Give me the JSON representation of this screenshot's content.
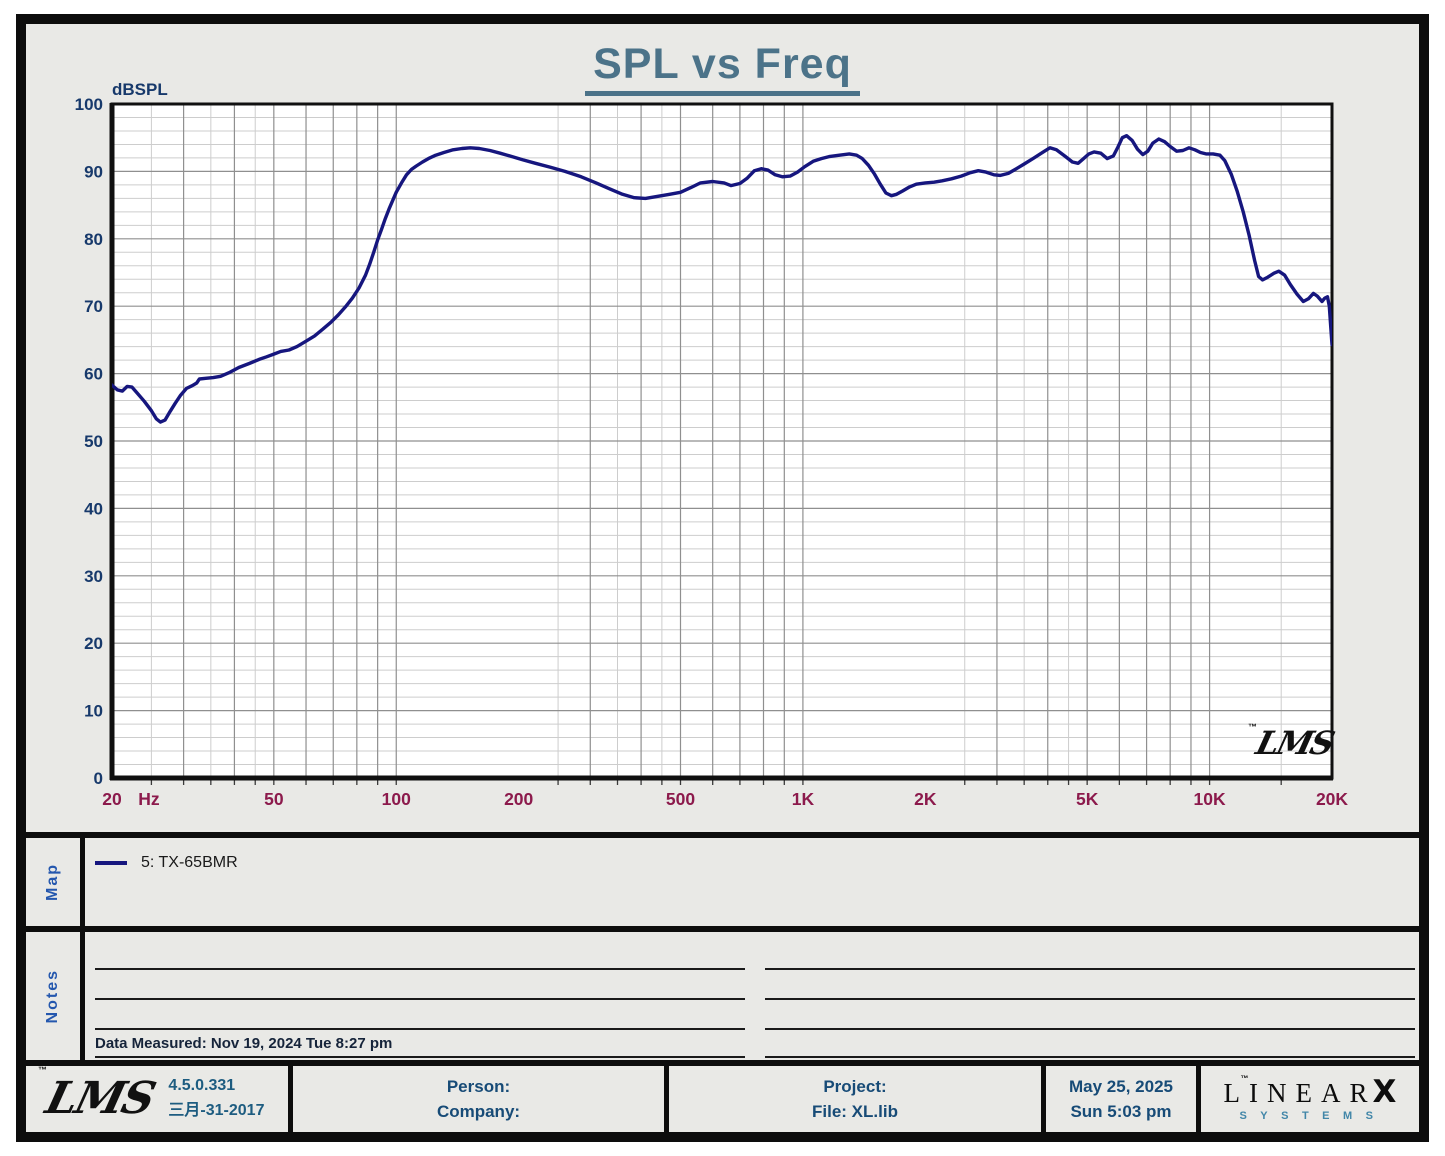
{
  "title": "SPL vs Freq",
  "chart_data": {
    "type": "line",
    "title": "SPL vs Freq",
    "x_axis": {
      "scale": "log",
      "min": 20,
      "max": 20000,
      "unit": "Hz",
      "ticks": [
        {
          "f": 20,
          "label": "20"
        },
        {
          "f": 50,
          "label": "50"
        },
        {
          "f": 100,
          "label": "100"
        },
        {
          "f": 200,
          "label": "200"
        },
        {
          "f": 500,
          "label": "500"
        },
        {
          "f": 1000,
          "label": "1K"
        },
        {
          "f": 2000,
          "label": "2K"
        },
        {
          "f": 5000,
          "label": "5K"
        },
        {
          "f": 10000,
          "label": "10K"
        },
        {
          "f": 20000,
          "label": "20K"
        }
      ]
    },
    "y_axis": {
      "label": "dBSPL",
      "min": 0,
      "max": 100,
      "tick_step": 10,
      "minor_step": 2
    },
    "grid": "on",
    "legend_position": "map-band-below",
    "watermark": "LMS",
    "series": [
      {
        "name": "5: TX-65BMR",
        "color": "#16167e",
        "points": [
          [
            20,
            58.3
          ],
          [
            20.6,
            57.6
          ],
          [
            21.2,
            57.4
          ],
          [
            21.8,
            58.1
          ],
          [
            22.4,
            58.0
          ],
          [
            23,
            57.2
          ],
          [
            24,
            55.9
          ],
          [
            25,
            54.5
          ],
          [
            25.7,
            53.3
          ],
          [
            26.3,
            52.8
          ],
          [
            27,
            53.1
          ],
          [
            27.8,
            54.4
          ],
          [
            28.6,
            55.6
          ],
          [
            29.5,
            56.8
          ],
          [
            30.5,
            57.8
          ],
          [
            31.5,
            58.2
          ],
          [
            32.3,
            58.6
          ],
          [
            32.8,
            59.2
          ],
          [
            34,
            59.3
          ],
          [
            35.5,
            59.4
          ],
          [
            37,
            59.6
          ],
          [
            39,
            60.2
          ],
          [
            41,
            60.9
          ],
          [
            43.5,
            61.5
          ],
          [
            46,
            62.1
          ],
          [
            48,
            62.5
          ],
          [
            50,
            62.9
          ],
          [
            52,
            63.3
          ],
          [
            54.5,
            63.5
          ],
          [
            57,
            64.0
          ],
          [
            60,
            64.8
          ],
          [
            63,
            65.6
          ],
          [
            66,
            66.6
          ],
          [
            69,
            67.6
          ],
          [
            72,
            68.7
          ],
          [
            75,
            69.9
          ],
          [
            78,
            71.2
          ],
          [
            81,
            72.7
          ],
          [
            84,
            74.6
          ],
          [
            86,
            76.2
          ],
          [
            88,
            78.0
          ],
          [
            90,
            79.8
          ],
          [
            92,
            81.4
          ],
          [
            94,
            83.0
          ],
          [
            96,
            84.4
          ],
          [
            98,
            85.7
          ],
          [
            100,
            86.9
          ],
          [
            103,
            88.3
          ],
          [
            106,
            89.5
          ],
          [
            109,
            90.3
          ],
          [
            112,
            90.8
          ],
          [
            116,
            91.4
          ],
          [
            120,
            91.9
          ],
          [
            125,
            92.4
          ],
          [
            131,
            92.8
          ],
          [
            138,
            93.2
          ],
          [
            145,
            93.4
          ],
          [
            152,
            93.5
          ],
          [
            160,
            93.4
          ],
          [
            170,
            93.1
          ],
          [
            180,
            92.7
          ],
          [
            190,
            92.3
          ],
          [
            205,
            91.7
          ],
          [
            220,
            91.2
          ],
          [
            240,
            90.6
          ],
          [
            260,
            90.0
          ],
          [
            285,
            89.2
          ],
          [
            310,
            88.3
          ],
          [
            335,
            87.4
          ],
          [
            360,
            86.6
          ],
          [
            385,
            86.1
          ],
          [
            410,
            86.0
          ],
          [
            440,
            86.3
          ],
          [
            470,
            86.6
          ],
          [
            500,
            86.9
          ],
          [
            530,
            87.6
          ],
          [
            560,
            88.3
          ],
          [
            600,
            88.5
          ],
          [
            640,
            88.3
          ],
          [
            665,
            87.9
          ],
          [
            700,
            88.2
          ],
          [
            730,
            89.0
          ],
          [
            760,
            90.1
          ],
          [
            790,
            90.4
          ],
          [
            820,
            90.2
          ],
          [
            855,
            89.5
          ],
          [
            890,
            89.2
          ],
          [
            930,
            89.3
          ],
          [
            970,
            89.9
          ],
          [
            1010,
            90.7
          ],
          [
            1060,
            91.5
          ],
          [
            1110,
            91.9
          ],
          [
            1160,
            92.2
          ],
          [
            1230,
            92.4
          ],
          [
            1300,
            92.6
          ],
          [
            1355,
            92.4
          ],
          [
            1400,
            91.9
          ],
          [
            1450,
            90.9
          ],
          [
            1500,
            89.6
          ],
          [
            1550,
            88.1
          ],
          [
            1600,
            86.8
          ],
          [
            1650,
            86.4
          ],
          [
            1700,
            86.6
          ],
          [
            1760,
            87.1
          ],
          [
            1830,
            87.7
          ],
          [
            1900,
            88.1
          ],
          [
            2000,
            88.3
          ],
          [
            2100,
            88.4
          ],
          [
            2200,
            88.6
          ],
          [
            2320,
            88.9
          ],
          [
            2450,
            89.3
          ],
          [
            2580,
            89.8
          ],
          [
            2700,
            90.1
          ],
          [
            2820,
            89.9
          ],
          [
            2950,
            89.5
          ],
          [
            3060,
            89.4
          ],
          [
            3200,
            89.7
          ],
          [
            3350,
            90.4
          ],
          [
            3500,
            91.1
          ],
          [
            3700,
            92.0
          ],
          [
            3900,
            92.9
          ],
          [
            4050,
            93.5
          ],
          [
            4200,
            93.2
          ],
          [
            4400,
            92.3
          ],
          [
            4600,
            91.4
          ],
          [
            4750,
            91.2
          ],
          [
            4900,
            91.9
          ],
          [
            5050,
            92.6
          ],
          [
            5200,
            92.9
          ],
          [
            5400,
            92.7
          ],
          [
            5600,
            91.9
          ],
          [
            5800,
            92.3
          ],
          [
            5950,
            93.6
          ],
          [
            6100,
            95.0
          ],
          [
            6250,
            95.3
          ],
          [
            6450,
            94.6
          ],
          [
            6650,
            93.3
          ],
          [
            6850,
            92.5
          ],
          [
            7050,
            93.0
          ],
          [
            7250,
            94.2
          ],
          [
            7500,
            94.8
          ],
          [
            7750,
            94.4
          ],
          [
            8000,
            93.7
          ],
          [
            8300,
            93.0
          ],
          [
            8600,
            93.1
          ],
          [
            8900,
            93.5
          ],
          [
            9200,
            93.2
          ],
          [
            9500,
            92.8
          ],
          [
            9800,
            92.6
          ],
          [
            10200,
            92.6
          ],
          [
            10600,
            92.4
          ],
          [
            10900,
            91.6
          ],
          [
            11300,
            89.6
          ],
          [
            11700,
            87.0
          ],
          [
            12100,
            84.0
          ],
          [
            12500,
            80.6
          ],
          [
            12900,
            76.8
          ],
          [
            13200,
            74.4
          ],
          [
            13500,
            73.9
          ],
          [
            13900,
            74.3
          ],
          [
            14400,
            74.9
          ],
          [
            14800,
            75.2
          ],
          [
            15300,
            74.6
          ],
          [
            15800,
            73.2
          ],
          [
            16400,
            71.8
          ],
          [
            17000,
            70.7
          ],
          [
            17500,
            71.1
          ],
          [
            18000,
            71.9
          ],
          [
            18400,
            71.5
          ],
          [
            18900,
            70.7
          ],
          [
            19200,
            71.2
          ],
          [
            19500,
            71.4
          ],
          [
            19700,
            70.0
          ],
          [
            20000,
            64.3
          ]
        ]
      }
    ]
  },
  "map": {
    "label": "Map",
    "legend": [
      {
        "name": "5: TX-65BMR",
        "color": "#16167e"
      }
    ]
  },
  "notes": {
    "label": "Notes",
    "data_measured": "Data Measured: Nov 19, 2024  Tue  8:27 pm"
  },
  "watermark": {
    "text": "LMS",
    "tm": "™"
  },
  "footer": {
    "logo": "LMS",
    "tm": "™",
    "version": "4.5.0.331",
    "build_date": "三月-31-2017",
    "person": "Person:",
    "company": "Company:",
    "project": "Project:",
    "file": "File: XL.lib",
    "date": "May 25, 2025",
    "time": "Sun  5:03 pm",
    "brand": {
      "linear": "LINEAR",
      "x": "X",
      "tm": "™",
      "systems": "SYSTEMS"
    }
  },
  "colors": {
    "curve": "#16167e",
    "title": "#4c7389",
    "y_labels": "#17396b",
    "x_labels": "#8c1a4c",
    "side_labels": "#2457ae",
    "footer_text": "#174b77",
    "grid_major": "#8f8f8f",
    "grid_minor": "#cdcdcd",
    "panel_bg": "#e9e9e6",
    "plot_bg": "#ffffff"
  }
}
